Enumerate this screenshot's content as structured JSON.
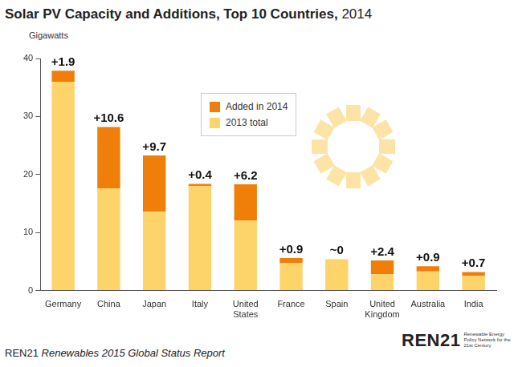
{
  "chart_data": {
    "type": "bar",
    "title": "Solar PV Capacity and Additions, Top 10 Countries, 2014",
    "y_label": "Gigawatts",
    "categories": [
      "Germany",
      "China",
      "Japan",
      "Italy",
      "United States",
      "France",
      "Spain",
      "United Kingdom",
      "Australia",
      "India"
    ],
    "series": [
      {
        "name": "2013 total",
        "color": "#fdd46a",
        "values": [
          36.0,
          17.6,
          13.6,
          18.0,
          12.1,
          4.7,
          5.4,
          2.8,
          3.3,
          2.5
        ]
      },
      {
        "name": "Added in 2014",
        "color": "#f07f0a",
        "values": [
          1.9,
          10.6,
          9.7,
          0.4,
          6.2,
          0.9,
          0,
          2.4,
          0.9,
          0.7
        ],
        "value_labels": [
          "+1.9",
          "+10.6",
          "+9.7",
          "+0.4",
          "+6.2",
          "+0.9",
          "~0",
          "+2.4",
          "+0.9",
          "+0.7"
        ]
      }
    ],
    "stacked": true,
    "data_labels": true,
    "legend": "upper center",
    "grid": false,
    "ylim": [
      0,
      40
    ],
    "yticks": [
      0,
      10,
      20,
      30,
      40
    ]
  },
  "source": {
    "organization": "REN21",
    "publication": "Renewables 2015 Global Status Report"
  },
  "logo": {
    "text": "REN21",
    "tagline": "Renewable Energy Policy Network for the 21st Century"
  }
}
